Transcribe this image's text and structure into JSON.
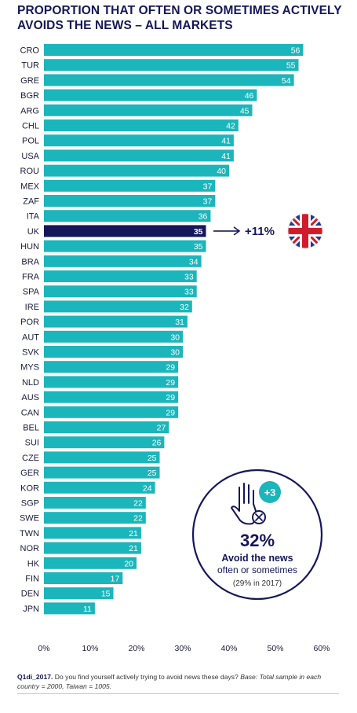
{
  "title": "PROPORTION THAT OFTEN OR SOMETIMES ACTIVELY AVOIDS THE NEWS – ALL MARKETS",
  "chart_data": {
    "type": "bar",
    "orientation": "horizontal",
    "categories": [
      "CRO",
      "TUR",
      "GRE",
      "BGR",
      "ARG",
      "CHL",
      "POL",
      "USA",
      "ROU",
      "MEX",
      "ZAF",
      "ITA",
      "UK",
      "HUN",
      "BRA",
      "FRA",
      "SPA",
      "IRE",
      "POR",
      "AUT",
      "SVK",
      "MYS",
      "NLD",
      "AUS",
      "CAN",
      "BEL",
      "SUI",
      "CZE",
      "GER",
      "KOR",
      "SGP",
      "SWE",
      "TWN",
      "NOR",
      "HK",
      "FIN",
      "DEN",
      "JPN"
    ],
    "values": [
      56,
      55,
      54,
      46,
      45,
      42,
      41,
      41,
      40,
      37,
      37,
      36,
      35,
      35,
      34,
      33,
      33,
      32,
      31,
      30,
      30,
      29,
      29,
      29,
      29,
      27,
      26,
      25,
      25,
      24,
      22,
      22,
      21,
      21,
      20,
      17,
      15,
      11
    ],
    "highlight": "UK",
    "xlim": [
      0,
      60
    ],
    "ticks": [
      "0%",
      "10%",
      "20%",
      "30%",
      "40%",
      "50%",
      "60%"
    ],
    "bar_color": "#1bb6bb",
    "highlight_color": "#14175a",
    "grid": false
  },
  "uk_callout": {
    "text": "+11%",
    "icon": "union-jack-flag-icon"
  },
  "summary_circle": {
    "badge": "+3",
    "icon": "hand-with-x-icon",
    "value": "32%",
    "line1": "Avoid the news",
    "line2": "often or sometimes",
    "note": "(29% in 2017)",
    "border_color": "#14175a"
  },
  "footnote": {
    "code": "Q1di_2017.",
    "question": " Do you find yourself actively trying to avoid news these days? ",
    "base": "Base: Total sample in each country = 2000, Taiwan = 1005."
  }
}
